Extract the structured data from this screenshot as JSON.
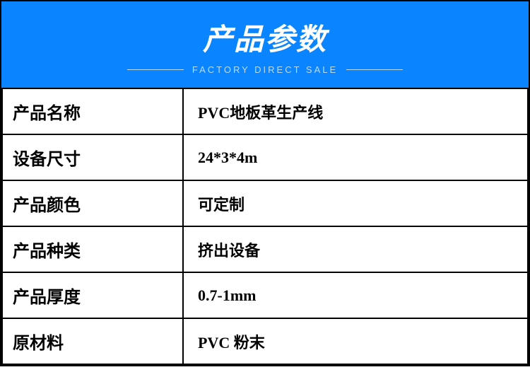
{
  "header": {
    "title": "产品参数",
    "subtitle": "FACTORY DIRECT SALE",
    "background_color": "#0a84ff",
    "title_color": "#ffffff",
    "title_fontsize": 42,
    "subtitle_color": "#b8dcff",
    "subtitle_fontsize": 13,
    "divider_color": "#b8dcff"
  },
  "table": {
    "border_color": "#000000",
    "label_fontsize": 24,
    "value_fontsize": 22,
    "rows": [
      {
        "label": "产品名称",
        "value": "PVC地板革生产线"
      },
      {
        "label": "设备尺寸",
        "value": "24*3*4m"
      },
      {
        "label": "产品颜色",
        "value": "可定制"
      },
      {
        "label": "产品种类",
        "value": "挤出设备"
      },
      {
        "label": "产品厚度",
        "value": "0.7-1mm"
      },
      {
        "label": "原材料",
        "value": "PVC 粉末"
      }
    ]
  }
}
